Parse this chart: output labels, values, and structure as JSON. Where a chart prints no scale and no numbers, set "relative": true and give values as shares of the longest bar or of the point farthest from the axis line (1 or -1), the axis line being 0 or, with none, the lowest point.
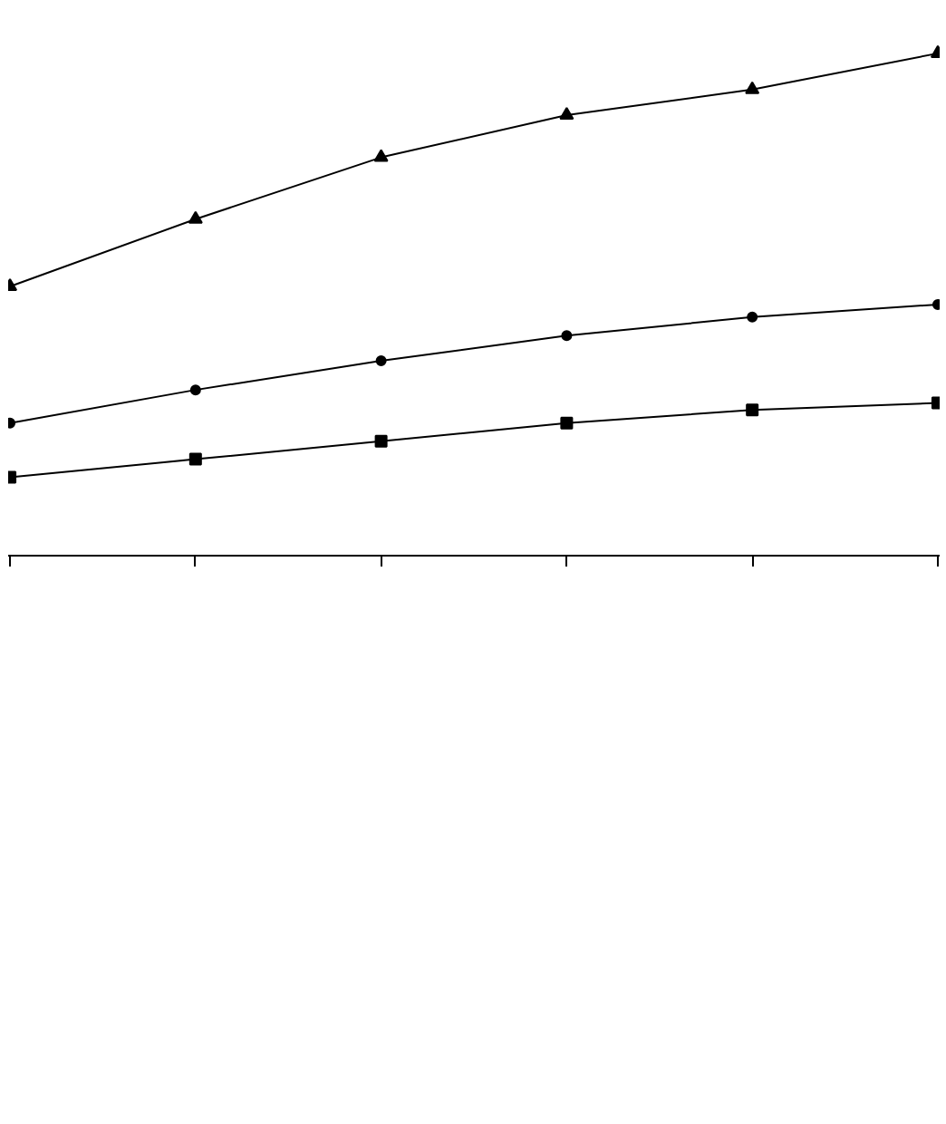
{
  "chart_data": {
    "type": "line",
    "relative": true,
    "categories": [
      null,
      null,
      null,
      null,
      null,
      null
    ],
    "series": [
      {
        "color": "#000000",
        "marker": "square",
        "values": [
          0.156,
          0.192,
          0.228,
          0.264,
          0.29,
          0.304
        ]
      },
      {
        "color": "#000000",
        "marker": "circle",
        "values": [
          0.264,
          0.33,
          0.388,
          0.438,
          0.475,
          0.5
        ]
      },
      {
        "color": "#000000",
        "marker": "triangle",
        "values": [
          0.536,
          0.67,
          0.793,
          0.877,
          0.928,
          1
        ]
      }
    ],
    "grid": false,
    "line_style": "solid"
  }
}
